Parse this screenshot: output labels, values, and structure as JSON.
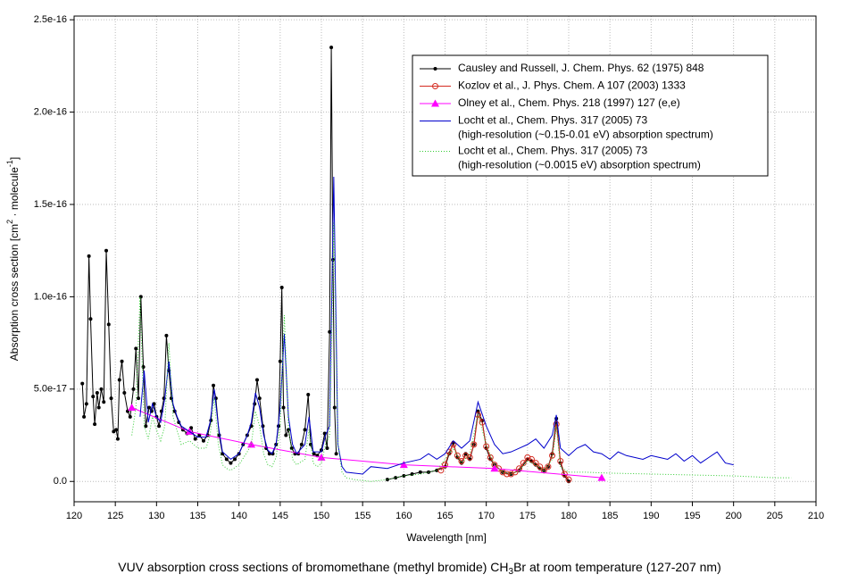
{
  "chart_data": {
    "type": "line",
    "title": [
      "VUV absorption cross sections of bromomethane (methyl bromide) CH",
      "3",
      "Br at room temperature (127-207 nm)"
    ],
    "xlabel": "Wavelength [nm]",
    "ylabel": [
      "Absorption cross section [cm",
      "2",
      " · molecule",
      "-1",
      "]"
    ],
    "xlim": [
      120,
      210
    ],
    "xticks": [
      120,
      125,
      130,
      135,
      140,
      145,
      150,
      155,
      160,
      165,
      170,
      175,
      180,
      185,
      190,
      195,
      200,
      205,
      210
    ],
    "ylim": [
      -1.1e-17,
      2.52e-16
    ],
    "yticks": [
      {
        "value": 0,
        "label": "0.0"
      },
      {
        "value": 5e-17,
        "label": "5.0e-17"
      },
      {
        "value": 1e-16,
        "label": "1.0e-16"
      },
      {
        "value": 1.5e-16,
        "label": "1.5e-16"
      },
      {
        "value": 2e-16,
        "label": "2.0e-16"
      },
      {
        "value": 2.5e-16,
        "label": "2.5e-16"
      }
    ],
    "grid": true,
    "legend": "upper right",
    "series": [
      {
        "name": "Causley and Russell,  J. Chem. Phys. 62 (1975) 848",
        "color": "#000000",
        "marker": "dot",
        "x": [
          121,
          121.2,
          121.5,
          121.8,
          122,
          122.3,
          122.5,
          122.8,
          123,
          123.3,
          123.6,
          123.9,
          124.2,
          124.5,
          124.8,
          125.1,
          125.3,
          125.5,
          125.8,
          126.1,
          126.5,
          126.8,
          127.2,
          127.5,
          127.8,
          128.1,
          128.4,
          128.7,
          129.1,
          129.4,
          129.7,
          130,
          130.3,
          130.6,
          130.9,
          131.2,
          131.5,
          131.8,
          132.2,
          132.7,
          133.2,
          133.7,
          134.2,
          134.7,
          135.2,
          135.7,
          136.2,
          136.6,
          136.9,
          137.2,
          137.6,
          138,
          138.5,
          139,
          139.5,
          140,
          140.5,
          141,
          141.5,
          141.9,
          142.2,
          142.5,
          142.9,
          143.3,
          143.7,
          144.1,
          144.5,
          144.8,
          145,
          145.2,
          145.4,
          145.7,
          146,
          146.4,
          146.8,
          147.2,
          147.6,
          148,
          148.4,
          148.7,
          149.1,
          149.5,
          150,
          150.4,
          150.7,
          151,
          151.2,
          151.4,
          151.6,
          151.8,
          155,
          158,
          159,
          160,
          161,
          162,
          163,
          164,
          165,
          165.5,
          166,
          166.5,
          167,
          167.5,
          168,
          168.5,
          169,
          169.5,
          170,
          170.5,
          171,
          172,
          173,
          174,
          175,
          175.5,
          176,
          176.5,
          177,
          177.5,
          178,
          178.5,
          179,
          179.5,
          180
        ],
        "values": [
          5.3e-17,
          3.5e-17,
          4.2e-17,
          1.22e-16,
          8.8e-17,
          4.6e-17,
          3.1e-17,
          4.8e-17,
          4e-17,
          5e-17,
          4.3e-17,
          1.25e-16,
          8.5e-17,
          4.5e-17,
          2.7e-17,
          2.8e-17,
          2.3e-17,
          5.5e-17,
          6.5e-17,
          4.8e-17,
          3.8e-17,
          3.5e-17,
          5e-17,
          7.2e-17,
          4.5e-17,
          1e-16,
          6.2e-17,
          3e-17,
          4e-17,
          3.8e-17,
          4.2e-17,
          3.5e-17,
          3e-17,
          3.8e-17,
          4.5e-17,
          7.9e-17,
          6e-17,
          4.5e-17,
          3.8e-17,
          3.2e-17,
          2.8e-17,
          2.6e-17,
          2.9e-17,
          2.3e-17,
          2.5e-17,
          2.2e-17,
          2.5e-17,
          3.3e-17,
          5.2e-17,
          4.5e-17,
          2.5e-17,
          1.5e-17,
          1.2e-17,
          1e-17,
          1.2e-17,
          1.5e-17,
          2e-17,
          2.5e-17,
          3e-17,
          4.2e-17,
          5.5e-17,
          4.5e-17,
          3e-17,
          1.8e-17,
          1.5e-17,
          1.5e-17,
          2e-17,
          3e-17,
          6.5e-17,
          1.05e-16,
          4e-17,
          2.5e-17,
          2.8e-17,
          1.8e-17,
          1.5e-17,
          1.5e-17,
          2e-17,
          2.8e-17,
          4.7e-17,
          2e-17,
          1.5e-17,
          1.4e-17,
          1.7e-17,
          2.6e-17,
          1.8e-17,
          8.1e-17,
          2.35e-16,
          1.2e-16,
          4e-17,
          1.5e-17,
          null,
          1e-18,
          2e-18,
          3e-18,
          4e-18,
          5e-18,
          5e-18,
          6e-18,
          8e-18,
          1.5e-17,
          2.1e-17,
          1.3e-17,
          1e-17,
          1.5e-17,
          1.2e-17,
          2e-17,
          3.8e-17,
          3.3e-17,
          1.8e-17,
          1.2e-17,
          9e-18,
          5e-18,
          4e-18,
          6e-18,
          1.2e-17,
          1.1e-17,
          9e-18,
          7e-18,
          6e-18,
          8e-18,
          1.5e-17,
          3.4e-17,
          1e-17,
          3e-18,
          0
        ]
      },
      {
        "name": "Kozlov et al., J. Phys. Chem. A 107 (2003) 1333",
        "color": "#d42a20",
        "marker": "circle",
        "x": [
          164.5,
          165,
          165.5,
          166,
          166.5,
          167,
          167.5,
          168,
          168.5,
          169,
          169.5,
          170,
          170.5,
          171,
          171.5,
          172,
          172.5,
          173,
          173.5,
          174,
          174.5,
          175,
          175.5,
          176,
          176.5,
          177,
          177.5,
          178,
          178.5,
          179,
          179.5,
          180
        ],
        "values": [
          6e-18,
          9e-18,
          1.6e-17,
          2e-17,
          1.4e-17,
          1.1e-17,
          1.4e-17,
          1.3e-17,
          2e-17,
          3.6e-17,
          3.2e-17,
          1.9e-17,
          1.3e-17,
          9e-18,
          7e-18,
          5e-18,
          4e-18,
          4e-18,
          5e-18,
          7e-18,
          1e-17,
          1.3e-17,
          1.2e-17,
          1e-17,
          8e-18,
          6e-18,
          8e-18,
          1.4e-17,
          3.1e-17,
          1.1e-17,
          4e-18,
          1e-18
        ]
      },
      {
        "name": "Olney et al., Chem. Phys. 218 (1997) 127 (e,e)",
        "color": "#ff00ff",
        "marker": "triangle",
        "x": [
          127,
          134,
          141.5,
          150,
          160,
          171,
          184
        ],
        "values": [
          4e-17,
          2.7e-17,
          2e-17,
          1.3e-17,
          9e-18,
          7e-18,
          2e-18
        ]
      },
      {
        "name": "Locht et al., Chem. Phys. 317 (2005) 73",
        "name_note": "(high-resolution (~0.15-0.01 eV) absorption spectrum)",
        "color": "#0000cc",
        "marker": "none",
        "x": [
          128,
          128.5,
          129,
          129.5,
          130,
          130.5,
          131,
          131.5,
          132,
          132.5,
          133,
          134,
          135,
          136,
          136.5,
          137,
          137.5,
          138,
          139,
          140,
          141,
          141.5,
          142,
          142.5,
          143,
          143.5,
          144,
          144.5,
          145,
          145.5,
          146,
          146.5,
          147,
          148,
          148.5,
          149,
          150,
          150.5,
          151,
          151.5,
          152,
          152.5,
          153,
          155,
          156,
          158,
          160,
          162,
          163,
          164,
          165,
          166,
          167,
          168,
          169,
          170,
          171,
          172,
          173,
          174,
          175,
          176,
          177,
          178,
          178.5,
          179,
          180,
          181,
          182,
          183,
          184,
          185,
          186,
          187,
          188,
          189,
          190,
          191,
          192,
          193,
          194,
          195,
          196,
          197,
          198,
          199,
          200
        ],
        "values": [
          3.5e-17,
          6e-17,
          3.2e-17,
          4.2e-17,
          3.5e-17,
          3.2e-17,
          4.5e-17,
          6.5e-17,
          4.2e-17,
          3.5e-17,
          3e-17,
          2.7e-17,
          2.4e-17,
          2.4e-17,
          3.2e-17,
          5e-17,
          3e-17,
          1.6e-17,
          1.2e-17,
          1.5e-17,
          2.5e-17,
          3.2e-17,
          4.8e-17,
          4e-17,
          2.5e-17,
          1.7e-17,
          1.5e-17,
          2e-17,
          4e-17,
          8e-17,
          3.5e-17,
          2e-17,
          1.5e-17,
          2e-17,
          3.5e-17,
          1.6e-17,
          1.6e-17,
          2.5e-17,
          3e-17,
          1.65e-16,
          2e-17,
          8e-18,
          5e-18,
          4e-18,
          8e-18,
          7e-18,
          1e-17,
          1.2e-17,
          1.5e-17,
          1.2e-17,
          1.5e-17,
          2.2e-17,
          1.8e-17,
          2.2e-17,
          4.3e-17,
          3e-17,
          2e-17,
          1.5e-17,
          1.6e-17,
          1.8e-17,
          2e-17,
          2.3e-17,
          1.8e-17,
          2.5e-17,
          3.6e-17,
          1.8e-17,
          1.4e-17,
          1.8e-17,
          2e-17,
          1.6e-17,
          1.5e-17,
          1.2e-17,
          1.6e-17,
          1.4e-17,
          1.3e-17,
          1.2e-17,
          1.4e-17,
          1.3e-17,
          1.2e-17,
          1.5e-17,
          1.1e-17,
          1.4e-17,
          1e-17,
          1.3e-17,
          1.6e-17,
          1e-17,
          9e-18
        ]
      },
      {
        "name": "Locht et al., Chem. Phys. 317 (2005) 73",
        "name_note": "(high-resolution (~0.0015 eV) absorption spectrum)",
        "color": "#33cc33",
        "marker": "none",
        "dash": "dotted",
        "x": [
          127,
          127.5,
          128,
          128.5,
          129,
          129.5,
          130,
          130.5,
          131,
          131.5,
          132,
          133,
          134,
          135,
          136,
          136.5,
          137,
          137.5,
          138,
          138.5,
          139,
          140,
          141,
          141.5,
          142,
          142.5,
          143,
          143.5,
          144,
          144.5,
          145,
          145.5,
          146,
          146.5,
          147,
          148,
          148.5,
          149,
          149.5,
          150,
          150.5,
          151,
          151.5,
          152,
          152.5,
          153,
          154,
          155,
          156,
          158,
          160,
          162,
          164,
          166,
          167,
          168,
          169,
          170,
          171,
          172,
          173,
          174,
          175,
          176,
          177,
          178,
          178.5,
          179,
          180,
          182,
          185,
          190,
          195,
          200,
          205,
          207
        ],
        "values": [
          2.5e-17,
          4e-17,
          1e-16,
          3e-17,
          2.3e-17,
          3.5e-17,
          2.8e-17,
          2.2e-17,
          3e-17,
          7.5e-17,
          3.5e-17,
          2e-17,
          2.2e-17,
          1.8e-17,
          1.8e-17,
          2.5e-17,
          4.5e-17,
          2e-17,
          9e-18,
          7e-18,
          6e-18,
          9e-18,
          1.6e-17,
          2e-17,
          3.8e-17,
          3e-17,
          1.5e-17,
          9e-18,
          8e-18,
          1.3e-17,
          3e-17,
          9e-17,
          3e-17,
          1.2e-17,
          9e-18,
          1.2e-17,
          2.8e-17,
          1e-17,
          8e-18,
          1e-17,
          2e-17,
          2.5e-17,
          1.4e-16,
          2e-17,
          5e-18,
          2e-18,
          1e-18,
          5e-19,
          0,
          1e-18,
          3e-18,
          4e-18,
          6e-18,
          1.8e-17,
          1e-17,
          1.5e-17,
          3.6e-17,
          2e-17,
          9e-18,
          5e-18,
          4e-18,
          6e-18,
          1.1e-17,
          9e-18,
          6e-18,
          1.2e-17,
          3e-17,
          8e-18,
          5e-18,
          5e-18,
          4.5e-18,
          4e-18,
          3.5e-18,
          3e-18,
          2e-18,
          2e-18
        ]
      }
    ]
  }
}
